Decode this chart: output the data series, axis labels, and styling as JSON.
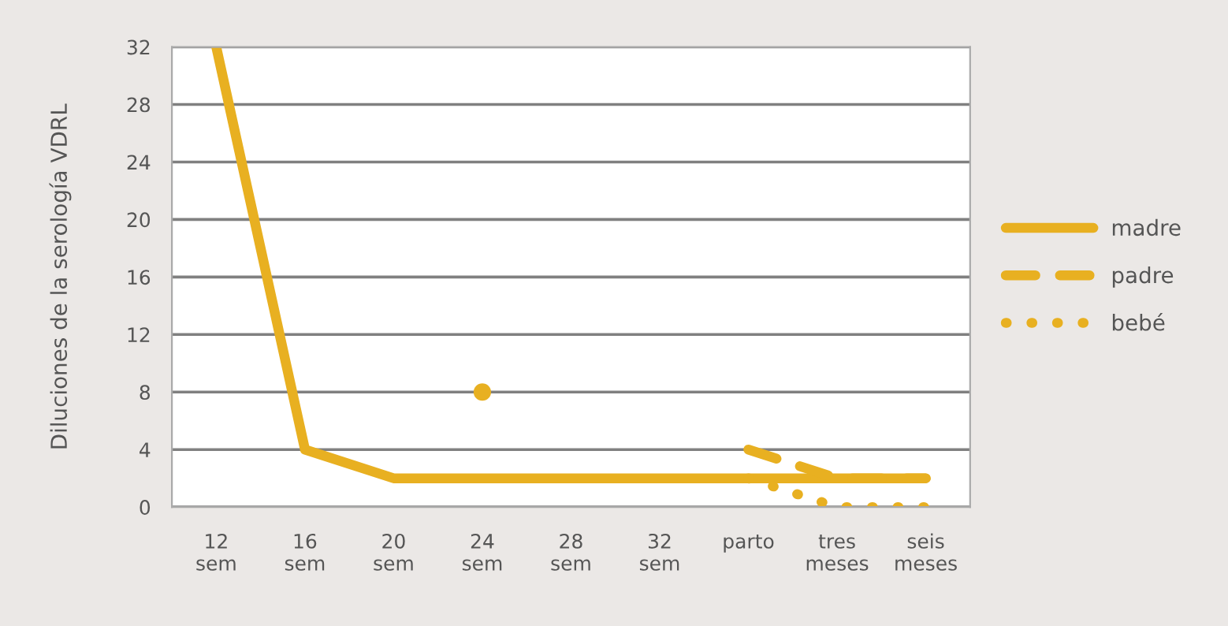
{
  "chart_data": {
    "type": "line",
    "ylabel": "Diluciones de la serología VDRL",
    "categories": [
      "12\nsem",
      "16\nsem",
      "20\nsem",
      "24\nsem",
      "28\nsem",
      "32\nsem",
      "parto",
      "tres\nmeses",
      "seis\nmeses"
    ],
    "series": [
      {
        "name": "madre",
        "color": "#e8b021",
        "line_style": "solid",
        "values": [
          32,
          4,
          2,
          2,
          2,
          2,
          2,
          2,
          2
        ]
      },
      {
        "name": "padre",
        "color": "#e8b021",
        "line_style": "dashed",
        "values": [
          null,
          null,
          null,
          8,
          null,
          null,
          4,
          2,
          2
        ]
      },
      {
        "name": "bebé",
        "color": "#e8b021",
        "line_style": "dotted",
        "values": [
          null,
          null,
          null,
          null,
          null,
          null,
          2,
          0,
          0
        ]
      }
    ],
    "ylim": [
      0,
      32
    ],
    "yticks": [
      0,
      4,
      8,
      12,
      16,
      20,
      24,
      28,
      32
    ],
    "grid": "y",
    "legend": "right"
  }
}
